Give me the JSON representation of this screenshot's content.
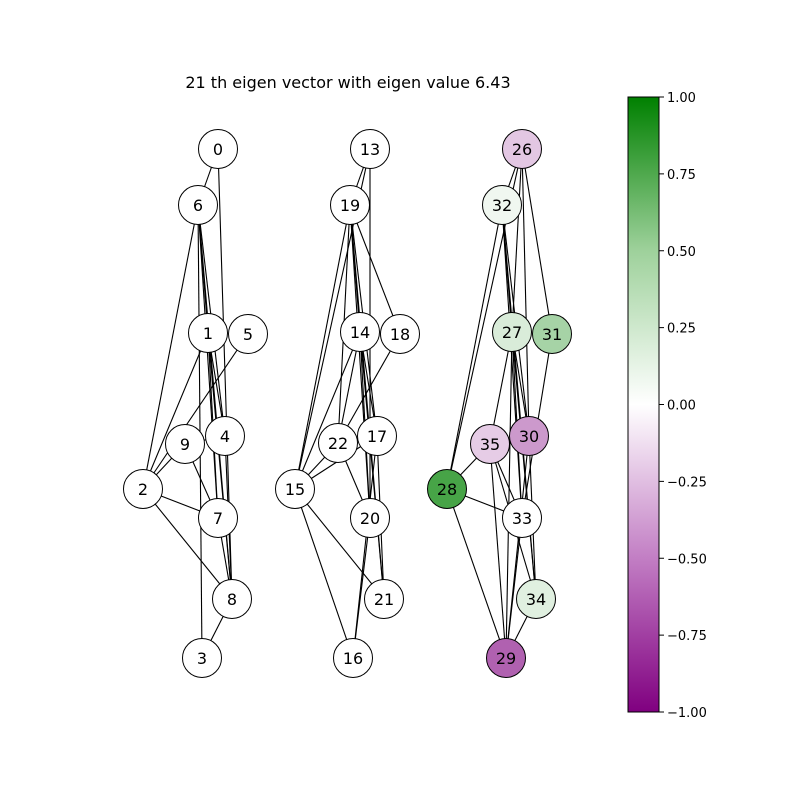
{
  "title": "21 th eigen vector with eigen value 6.43",
  "colorbar": {
    "min": -1.0,
    "max": 1.0,
    "colors": {
      "low": "#800080",
      "mid": "#ffffff",
      "high": "#008000"
    },
    "ticks": [
      {
        "value": 1.0,
        "label": "1.00"
      },
      {
        "value": 0.75,
        "label": "0.75"
      },
      {
        "value": 0.5,
        "label": "0.50"
      },
      {
        "value": 0.25,
        "label": "0.25"
      },
      {
        "value": 0.0,
        "label": "0.00"
      },
      {
        "value": -0.25,
        "label": "−0.25"
      },
      {
        "value": -0.5,
        "label": "−0.50"
      },
      {
        "value": -0.75,
        "label": "−0.75"
      },
      {
        "value": -1.0,
        "label": "−1.00"
      }
    ]
  },
  "nodes": [
    {
      "id": 0,
      "label": "0",
      "value": 0
    },
    {
      "id": 1,
      "label": "1",
      "value": 0
    },
    {
      "id": 2,
      "label": "2",
      "value": 0
    },
    {
      "id": 3,
      "label": "3",
      "value": 0
    },
    {
      "id": 4,
      "label": "4",
      "value": 0
    },
    {
      "id": 5,
      "label": "5",
      "value": 0
    },
    {
      "id": 6,
      "label": "6",
      "value": 0
    },
    {
      "id": 7,
      "label": "7",
      "value": 0
    },
    {
      "id": 8,
      "label": "8",
      "value": 0
    },
    {
      "id": 9,
      "label": "9",
      "value": 0
    },
    {
      "id": 13,
      "label": "13",
      "value": 0
    },
    {
      "id": 14,
      "label": "14",
      "value": 0
    },
    {
      "id": 15,
      "label": "15",
      "value": 0
    },
    {
      "id": 16,
      "label": "16",
      "value": 0
    },
    {
      "id": 17,
      "label": "17",
      "value": 0
    },
    {
      "id": 18,
      "label": "18",
      "value": 0
    },
    {
      "id": 19,
      "label": "19",
      "value": 0
    },
    {
      "id": 20,
      "label": "20",
      "value": 0
    },
    {
      "id": 21,
      "label": "21",
      "value": 0
    },
    {
      "id": 22,
      "label": "22",
      "value": 0
    },
    {
      "id": 26,
      "label": "26",
      "value": -0.22
    },
    {
      "id": 27,
      "label": "27",
      "value": 0.15
    },
    {
      "id": 28,
      "label": "28",
      "value": 0.72
    },
    {
      "id": 29,
      "label": "29",
      "value": -0.62
    },
    {
      "id": 30,
      "label": "30",
      "value": -0.4
    },
    {
      "id": 31,
      "label": "31",
      "value": 0.35
    },
    {
      "id": 32,
      "label": "32",
      "value": 0.06
    },
    {
      "id": 33,
      "label": "33",
      "value": 0
    },
    {
      "id": 34,
      "label": "34",
      "value": 0.12
    },
    {
      "id": 35,
      "label": "35",
      "value": -0.2
    }
  ],
  "edges": [
    [
      0,
      6
    ],
    [
      0,
      8
    ],
    [
      6,
      2
    ],
    [
      6,
      1
    ],
    [
      6,
      4
    ],
    [
      6,
      7
    ],
    [
      6,
      8
    ],
    [
      6,
      3
    ],
    [
      1,
      2
    ],
    [
      1,
      4
    ],
    [
      1,
      7
    ],
    [
      1,
      8
    ],
    [
      5,
      2
    ],
    [
      2,
      9
    ],
    [
      2,
      7
    ],
    [
      2,
      8
    ],
    [
      9,
      4
    ],
    [
      9,
      7
    ],
    [
      4,
      8
    ],
    [
      7,
      8
    ],
    [
      8,
      3
    ],
    [
      13,
      19
    ],
    [
      13,
      15
    ],
    [
      13,
      20
    ],
    [
      19,
      14
    ],
    [
      19,
      18
    ],
    [
      19,
      22
    ],
    [
      19,
      17
    ],
    [
      19,
      20
    ],
    [
      19,
      21
    ],
    [
      19,
      15
    ],
    [
      14,
      22
    ],
    [
      14,
      17
    ],
    [
      14,
      20
    ],
    [
      14,
      21
    ],
    [
      14,
      15
    ],
    [
      18,
      22
    ],
    [
      22,
      20
    ],
    [
      22,
      15
    ],
    [
      17,
      15
    ],
    [
      17,
      16
    ],
    [
      17,
      21
    ],
    [
      20,
      16
    ],
    [
      15,
      21
    ],
    [
      15,
      16
    ],
    [
      26,
      32
    ],
    [
      26,
      27
    ],
    [
      26,
      28
    ],
    [
      26,
      31
    ],
    [
      26,
      30
    ],
    [
      32,
      28
    ],
    [
      32,
      27
    ],
    [
      32,
      30
    ],
    [
      32,
      33
    ],
    [
      32,
      34
    ],
    [
      27,
      35
    ],
    [
      27,
      30
    ],
    [
      27,
      29
    ],
    [
      27,
      34
    ],
    [
      27,
      33
    ],
    [
      31,
      33
    ],
    [
      35,
      28
    ],
    [
      35,
      33
    ],
    [
      35,
      29
    ],
    [
      35,
      34
    ],
    [
      30,
      29
    ],
    [
      30,
      34
    ],
    [
      28,
      33
    ],
    [
      28,
      29
    ],
    [
      33,
      29
    ],
    [
      34,
      29
    ]
  ]
}
